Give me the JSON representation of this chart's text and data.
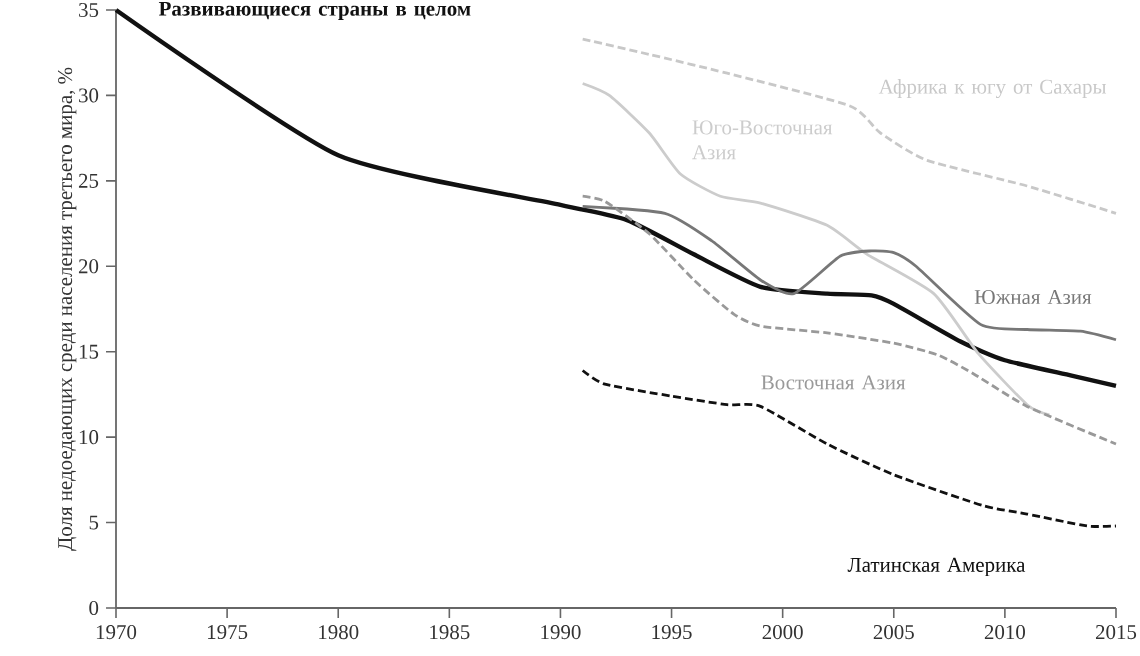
{
  "chart_data": {
    "type": "line",
    "ylabel": "Доля недоедающих среди населения третьего мира, %",
    "xlim": [
      1970,
      2015
    ],
    "xticks": [
      1970,
      1975,
      1980,
      1985,
      1990,
      1995,
      2000,
      2005,
      2010,
      2015
    ],
    "ylim": [
      0,
      35
    ],
    "yticks": [
      0,
      5,
      10,
      15,
      20,
      25,
      30,
      35
    ],
    "grid": false,
    "legend": false,
    "marker": "none",
    "series": [
      {
        "name": "Развивающиеся страны в целом",
        "color": "#111111",
        "line_style": "solid",
        "x": [
          1970,
          1980,
          1990,
          1993,
          1996,
          1999,
          2002,
          2004,
          2005,
          2008,
          2010,
          2013,
          2015
        ],
        "values": [
          35,
          26.5,
          23.6,
          22.7,
          20.7,
          18.8,
          18.4,
          18.3,
          17.8,
          15.6,
          14.5,
          13.6,
          13.0
        ]
      },
      {
        "name": "Африка к югу от Сахары",
        "color": "#c8c8c8",
        "line_style": "dashed",
        "x": [
          1991,
          1994,
          1997.5,
          2003,
          2004.4,
          2006.5,
          2011,
          2015
        ],
        "values": [
          33.3,
          32.4,
          31.3,
          29.4,
          27.8,
          26.2,
          24.7,
          23.1
        ]
      },
      {
        "name": "Юго-Восточная Азия",
        "color": "#cccccc",
        "line_style": "solid",
        "x": [
          1991,
          1992.2,
          1994,
          1995.4,
          1997.2,
          1999,
          2002,
          2003.8,
          2006.8,
          2008.8,
          2011,
          2012
        ],
        "values": [
          30.7,
          30.0,
          27.8,
          25.4,
          24.1,
          23.7,
          22.4,
          20.7,
          18.4,
          14.9,
          11.9,
          11.3
        ]
      },
      {
        "name": "Южная Азия",
        "color": "#777777",
        "line_style": "solid",
        "x": [
          1991,
          1994.7,
          1996.8,
          1999,
          2000.5,
          2002.6,
          2004,
          2005,
          2006,
          2008.9,
          2011,
          2013.4,
          2015
        ],
        "values": [
          23.5,
          23.1,
          21.5,
          19.2,
          18.4,
          20.6,
          20.9,
          20.8,
          20.0,
          16.6,
          16.3,
          16.2,
          15.7
        ]
      },
      {
        "name": "Восточная Азия",
        "color": "#999999",
        "line_style": "dashed",
        "x": [
          1991,
          1992,
          1994,
          1996,
          1997.8,
          1999,
          2002,
          2005,
          2007,
          2008.6,
          2011,
          2015
        ],
        "values": [
          24.1,
          23.8,
          21.9,
          19.2,
          17.2,
          16.5,
          16.1,
          15.5,
          14.8,
          13.7,
          11.8,
          9.6
        ]
      },
      {
        "name": "Латинская Америка",
        "color": "#111111",
        "line_style": "dashed",
        "x": [
          1991,
          1992,
          1995,
          1997.5,
          1999,
          2002,
          2005,
          2009,
          2011,
          2013.7,
          2015
        ],
        "values": [
          13.9,
          13.1,
          12.4,
          11.9,
          11.8,
          9.6,
          7.8,
          6.0,
          5.5,
          4.8,
          4.8
        ]
      }
    ]
  }
}
